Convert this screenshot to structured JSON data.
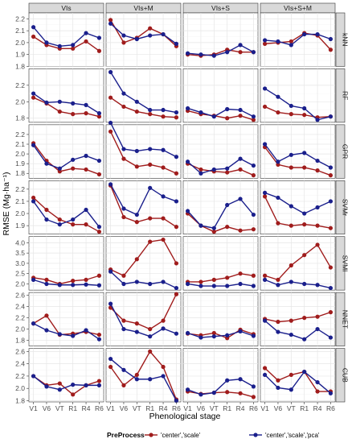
{
  "chart_data": {
    "type": "line",
    "xlabel": "Phenological stage",
    "ylabel": "RMSE (Mg·ha⁻¹)",
    "x": [
      "V1",
      "V6",
      "VT",
      "R1",
      "R4",
      "R6"
    ],
    "columns": [
      "VIs",
      "VIs+M",
      "VIs+S",
      "VIs+S+M"
    ],
    "legend": {
      "title": "PreProcess",
      "position": "bottom",
      "series_labels": [
        "'center','scale'",
        "'center','scale','pca'"
      ],
      "series_colors": [
        "#a01c1c",
        "#1a1f8c"
      ]
    },
    "grid": true,
    "rows": [
      {
        "model": "kNN",
        "ylim": [
          1.8,
          2.25
        ],
        "yticks": [
          "1.8",
          "1.9",
          "2.0",
          "2.1",
          "2.2"
        ],
        "panels": [
          {
            "column": "VIs",
            "series": [
              {
                "values": [
                  2.05,
                  1.98,
                  1.95,
                  1.95,
                  2.01,
                  1.93
                ]
              },
              {
                "values": [
                  2.13,
                  2.0,
                  1.97,
                  1.98,
                  2.08,
                  2.04
                ]
              }
            ]
          },
          {
            "column": "VIs+M",
            "series": [
              {
                "values": [
                  2.19,
                  2.0,
                  2.04,
                  2.12,
                  2.07,
                  1.97
                ]
              },
              {
                "values": [
                  2.16,
                  2.06,
                  2.03,
                  2.06,
                  2.07,
                  1.99
                ]
              }
            ]
          },
          {
            "column": "VIs+S",
            "series": [
              {
                "values": [
                  1.9,
                  1.89,
                  1.9,
                  1.94,
                  1.92,
                  1.92
                ]
              },
              {
                "values": [
                  1.91,
                  1.9,
                  1.89,
                  1.92,
                  1.98,
                  1.92
                ]
              }
            ]
          },
          {
            "column": "VIs+S+M",
            "series": [
              {
                "values": [
                  1.99,
                  2.0,
                  2.01,
                  2.08,
                  2.06,
                  1.94
                ]
              },
              {
                "values": [
                  2.02,
                  2.01,
                  1.98,
                  2.07,
                  2.07,
                  2.03
                ]
              }
            ]
          }
        ]
      },
      {
        "model": "RF",
        "ylim": [
          1.75,
          2.4
        ],
        "yticks": [
          "1.8",
          "2.0",
          "2.2"
        ],
        "panels": [
          {
            "column": "VIs",
            "series": [
              {
                "values": [
                  2.05,
                  1.98,
                  1.88,
                  1.85,
                  1.86,
                  1.82
                ]
              },
              {
                "values": [
                  2.1,
                  1.99,
                  2.0,
                  1.98,
                  1.96,
                  1.86
                ]
              }
            ]
          },
          {
            "column": "VIs+M",
            "series": [
              {
                "values": [
                  2.05,
                  1.94,
                  1.88,
                  1.85,
                  1.82,
                  1.81
                ]
              },
              {
                "values": [
                  2.36,
                  2.1,
                  2.0,
                  1.9,
                  1.9,
                  1.87
                ]
              }
            ]
          },
          {
            "column": "VIs+S",
            "series": [
              {
                "values": [
                  1.89,
                  1.85,
                  1.83,
                  1.8,
                  1.83,
                  1.78
                ]
              },
              {
                "values": [
                  1.92,
                  1.87,
                  1.82,
                  1.91,
                  1.9,
                  1.82
                ]
              }
            ]
          },
          {
            "column": "VIs+S+M",
            "series": [
              {
                "values": [
                  1.94,
                  1.87,
                  1.85,
                  1.84,
                  1.81,
                  1.82
                ]
              },
              {
                "values": [
                  2.16,
                  2.06,
                  1.95,
                  1.92,
                  1.78,
                  1.82
                ]
              }
            ]
          }
        ]
      },
      {
        "model": "GPR",
        "ylim": [
          1.75,
          2.3
        ],
        "yticks": [
          "1.8",
          "1.9",
          "2.0",
          "2.1",
          "2.2"
        ],
        "panels": [
          {
            "column": "VIs",
            "series": [
              {
                "values": [
                  2.11,
                  1.93,
                  1.82,
                  1.85,
                  1.84,
                  1.79
                ]
              },
              {
                "values": [
                  2.09,
                  1.9,
                  1.85,
                  1.94,
                  1.98,
                  1.93
                ]
              }
            ]
          },
          {
            "column": "VIs+M",
            "series": [
              {
                "values": [
                  2.23,
                  1.95,
                  1.87,
                  1.89,
                  1.86,
                  1.8
                ]
              },
              {
                "values": [
                  2.32,
                  2.05,
                  2.03,
                  2.05,
                  2.04,
                  1.97
                ]
              }
            ]
          },
          {
            "column": "VIs+S",
            "series": [
              {
                "values": [
                  1.9,
                  1.84,
                  1.82,
                  1.81,
                  1.84,
                  1.78
                ]
              },
              {
                "values": [
                  1.92,
                  1.8,
                  1.84,
                  1.85,
                  1.95,
                  1.88
                ]
              }
            ]
          },
          {
            "column": "VIs+S+M",
            "series": [
              {
                "values": [
                  2.07,
                  1.89,
                  1.86,
                  1.86,
                  1.83,
                  1.78
                ]
              },
              {
                "values": [
                  2.1,
                  1.92,
                  1.99,
                  2.01,
                  1.93,
                  1.86
                ]
              }
            ]
          }
        ]
      },
      {
        "model": "SVMr",
        "ylim": [
          1.83,
          2.27
        ],
        "yticks": [
          "1.9",
          "2.0",
          "2.1",
          "2.2"
        ],
        "panels": [
          {
            "column": "VIs",
            "series": [
              {
                "values": [
                  2.13,
                  2.03,
                  1.95,
                  1.91,
                  1.91,
                  1.85
                ]
              },
              {
                "values": [
                  2.1,
                  1.95,
                  1.91,
                  1.95,
                  2.03,
                  1.89
                ]
              }
            ]
          },
          {
            "column": "VIs+M",
            "series": [
              {
                "values": [
                  2.23,
                  1.97,
                  1.93,
                  1.96,
                  1.96,
                  1.89
                ]
              },
              {
                "values": [
                  2.24,
                  2.04,
                  1.99,
                  2.21,
                  2.14,
                  2.1
                ]
              }
            ]
          },
          {
            "column": "VIs+S",
            "series": [
              {
                "values": [
                  2.0,
                  1.9,
                  1.85,
                  1.89,
                  1.86,
                  1.87
                ]
              },
              {
                "values": [
                  2.02,
                  1.9,
                  1.88,
                  2.07,
                  2.12,
                  1.99
                ]
              }
            ]
          },
          {
            "column": "VIs+S+M",
            "series": [
              {
                "values": [
                  2.14,
                  1.92,
                  1.9,
                  1.91,
                  1.9,
                  1.88
                ]
              },
              {
                "values": [
                  2.17,
                  2.13,
                  2.06,
                  2.0,
                  2.05,
                  2.1
                ]
              }
            ]
          }
        ]
      },
      {
        "model": "SVMl",
        "ylim": [
          1.7,
          4.3
        ],
        "yticks": [
          "2.0",
          "2.5",
          "3.0",
          "3.5",
          "4.0"
        ],
        "panels": [
          {
            "column": "VIs",
            "series": [
              {
                "values": [
                  2.3,
                  2.2,
                  2.0,
                  2.15,
                  2.2,
                  2.4
                ]
              },
              {
                "values": [
                  2.2,
                  2.0,
                  1.95,
                  1.95,
                  1.97,
                  1.93
                ]
              }
            ]
          },
          {
            "column": "VIs+M",
            "series": [
              {
                "values": [
                  2.7,
                  2.4,
                  3.2,
                  4.05,
                  4.15,
                  3.0
                ]
              },
              {
                "values": [
                  2.6,
                  2.0,
                  2.1,
                  2.0,
                  2.1,
                  1.8
                ]
              }
            ]
          },
          {
            "column": "VIs+S",
            "series": [
              {
                "values": [
                  2.1,
                  2.1,
                  2.2,
                  2.3,
                  2.5,
                  2.4
                ]
              },
              {
                "values": [
                  2.0,
                  1.9,
                  1.9,
                  1.9,
                  2.0,
                  1.9
                ]
              }
            ]
          },
          {
            "column": "VIs+S+M",
            "series": [
              {
                "values": [
                  2.4,
                  2.2,
                  2.9,
                  3.4,
                  3.9,
                  2.8
                ]
              },
              {
                "values": [
                  2.2,
                  1.95,
                  2.1,
                  2.0,
                  1.95,
                  1.8
                ]
              }
            ]
          }
        ]
      },
      {
        "model": "NNET",
        "ylim": [
          1.7,
          2.65
        ],
        "yticks": [
          "1.8",
          "2.0",
          "2.2",
          "2.4",
          "2.6"
        ],
        "panels": [
          {
            "column": "VIs",
            "series": [
              {
                "values": [
                  2.1,
                  2.24,
                  1.9,
                  1.92,
                  1.95,
                  1.9
                ]
              },
              {
                "values": [
                  2.1,
                  1.98,
                  1.91,
                  1.88,
                  1.98,
                  1.82
                ]
              }
            ]
          },
          {
            "column": "VIs+M",
            "series": [
              {
                "values": [
                  2.38,
                  2.15,
                  2.1,
                  2.0,
                  2.15,
                  2.62
                ]
              },
              {
                "values": [
                  2.45,
                  2.0,
                  1.95,
                  1.87,
                  2.01,
                  1.92
                ]
              }
            ]
          },
          {
            "column": "VIs+S",
            "series": [
              {
                "values": [
                  1.92,
                  1.89,
                  1.93,
                  1.84,
                  1.99,
                  1.91
                ]
              },
              {
                "values": [
                  1.93,
                  1.85,
                  1.87,
                  1.89,
                  1.96,
                  1.88
                ]
              }
            ]
          },
          {
            "column": "VIs+S+M",
            "series": [
              {
                "values": [
                  2.18,
                  2.13,
                  2.15,
                  2.2,
                  2.22,
                  2.3
                ]
              },
              {
                "values": [
                  2.15,
                  1.95,
                  1.9,
                  1.82,
                  2.0,
                  1.85
                ]
              }
            ]
          }
        ]
      },
      {
        "model": "CUB",
        "ylim": [
          1.78,
          2.65
        ],
        "yticks": [
          "1.8",
          "2.0",
          "2.2",
          "2.4",
          "2.6"
        ],
        "panels": [
          {
            "column": "VIs",
            "series": [
              {
                "values": [
                  2.2,
                  2.05,
                  2.08,
                  1.9,
                  2.05,
                  2.12
                ]
              },
              {
                "values": [
                  2.2,
                  2.03,
                  1.98,
                  2.06,
                  2.05,
                  2.05
                ]
              }
            ]
          },
          {
            "column": "VIs+M",
            "series": [
              {
                "values": [
                  2.35,
                  2.05,
                  2.22,
                  2.6,
                  2.35,
                  1.82
                ]
              },
              {
                "values": [
                  2.48,
                  2.3,
                  2.15,
                  2.15,
                  2.2,
                  1.8
                ]
              }
            ]
          },
          {
            "column": "VIs+S",
            "series": [
              {
                "values": [
                  1.95,
                  1.91,
                  1.93,
                  1.94,
                  1.92,
                  1.86
                ]
              },
              {
                "values": [
                  1.98,
                  1.9,
                  1.93,
                  2.13,
                  2.15,
                  2.03
                ]
              }
            ]
          },
          {
            "column": "VIs+S+M",
            "series": [
              {
                "values": [
                  2.33,
                  2.13,
                  2.22,
                  2.27,
                  1.95,
                  1.95
                ]
              },
              {
                "values": [
                  2.22,
                  2.01,
                  1.98,
                  2.27,
                  2.1,
                  1.92
                ]
              }
            ]
          }
        ]
      }
    ]
  }
}
